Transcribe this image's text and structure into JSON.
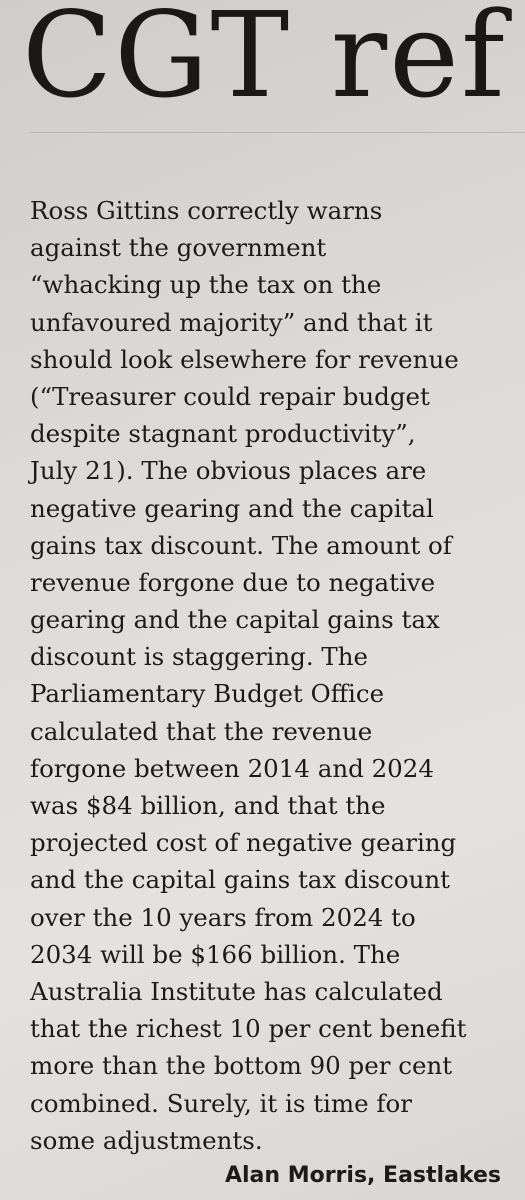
{
  "article": {
    "headline": "CGT ref",
    "lines": [
      "Ross Gittins correctly warns",
      "against the government",
      "“whacking up the tax on the",
      "unfavoured majority” and that it",
      "should look elsewhere for revenue",
      "(“Treasurer could repair budget",
      "despite stagnant productivity”,",
      "July 21). The obvious places are",
      "negative gearing and the capital",
      "gains tax discount. The amount of",
      "revenue forgone due to negative",
      "gearing and the capital gains tax",
      "discount is staggering. The",
      "Parliamentary Budget Office",
      "calculated that the revenue",
      "forgone between 2014 and 2024",
      "was $84 billion, and that the",
      "projected cost of negative gearing",
      "and the capital gains tax discount",
      "over the 10 years from 2024 to",
      "2034 will be $166 billion. The",
      "Australia Institute has calculated",
      "that the richest 10 per cent benefit",
      "more than the bottom 90 per cent",
      "combined. Surely, it is time for",
      "some adjustments."
    ],
    "signature": "Alan Morris, Eastlakes"
  }
}
